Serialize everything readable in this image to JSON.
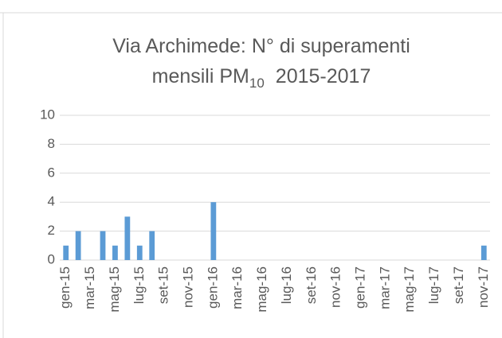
{
  "chart_data": {
    "type": "bar",
    "title_line1": "Via Archimede: N° di superamenti",
    "title_line2": {
      "text": "mensili PM",
      "subscript": "10",
      "suffix": "2015-2017"
    },
    "categories": [
      "gen-15",
      null,
      "mar-15",
      null,
      "mag-15",
      null,
      "lug-15",
      null,
      "set-15",
      null,
      "nov-15",
      null,
      "gen-16",
      null,
      "mar-16",
      null,
      "mag-16",
      null,
      "lug-16",
      null,
      "set-16",
      null,
      "nov-16",
      null,
      "gen-17",
      null,
      "mar-17",
      null,
      "mag-17",
      null,
      "lug-17",
      null,
      "set-17",
      null,
      "nov-17"
    ],
    "values": [
      1,
      2,
      0,
      2,
      1,
      3,
      1,
      2,
      0,
      0,
      0,
      0,
      4,
      0,
      0,
      0,
      0,
      0,
      0,
      0,
      0,
      0,
      0,
      0,
      0,
      0,
      0,
      0,
      0,
      0,
      0,
      0,
      0,
      0,
      1
    ],
    "color": "#5b9bd5",
    "ylim": [
      0,
      10
    ],
    "yticks": [
      0,
      2,
      4,
      6,
      8,
      10
    ],
    "grid": true
  }
}
